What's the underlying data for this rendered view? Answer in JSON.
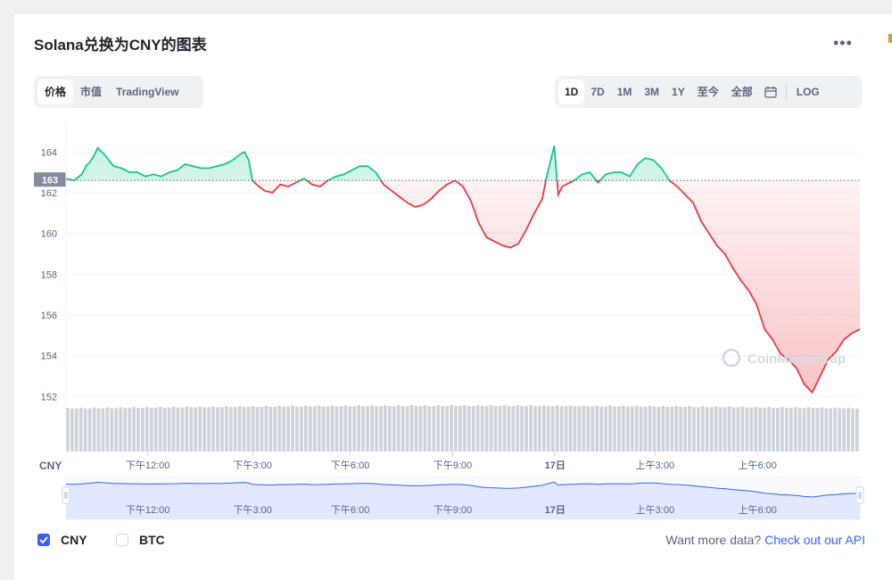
{
  "title": "Solana兑换为CNY的图表",
  "menu_icon": "more-horizontal-icon",
  "tabs_left": [
    {
      "label": "价格",
      "active": true
    },
    {
      "label": "市值",
      "active": false
    },
    {
      "label": "TradingView",
      "active": false
    }
  ],
  "ranges": [
    {
      "label": "1D",
      "active": true
    },
    {
      "label": "7D",
      "active": false
    },
    {
      "label": "1M",
      "active": false
    },
    {
      "label": "3M",
      "active": false
    },
    {
      "label": "1Y",
      "active": false
    },
    {
      "label": "至今",
      "active": false
    },
    {
      "label": "全部",
      "active": false
    }
  ],
  "calendar_icon": "calendar-icon",
  "log_label": "LOG",
  "watermark": "CoinMarketCap",
  "currency_axis_label": "CNY",
  "colors": {
    "up": "#16c784",
    "down": "#ea3943",
    "accent": "#3861fb",
    "navigator": "#dfe6ff"
  },
  "chart_data": {
    "type": "line",
    "ylim": [
      150,
      165.5
    ],
    "yticks": [
      152,
      154,
      156,
      158,
      160,
      162,
      164
    ],
    "reference_value": 162.6,
    "reference_label": "163",
    "xticks": [
      "下午12:00",
      "下午3:00",
      "下午6:00",
      "下午9:00",
      "17日",
      "上午3:00",
      "上午6:00"
    ],
    "xtick_positions": [
      0.103,
      0.235,
      0.358,
      0.487,
      0.616,
      0.742,
      0.871
    ],
    "x": [
      0,
      0.01,
      0.02,
      0.025,
      0.03,
      0.035,
      0.04,
      0.045,
      0.05,
      0.06,
      0.07,
      0.08,
      0.09,
      0.1,
      0.11,
      0.12,
      0.13,
      0.14,
      0.15,
      0.16,
      0.17,
      0.18,
      0.19,
      0.2,
      0.21,
      0.22,
      0.225,
      0.23,
      0.235,
      0.24,
      0.25,
      0.26,
      0.27,
      0.28,
      0.29,
      0.3,
      0.31,
      0.32,
      0.33,
      0.34,
      0.35,
      0.36,
      0.37,
      0.38,
      0.39,
      0.4,
      0.41,
      0.42,
      0.43,
      0.44,
      0.45,
      0.46,
      0.47,
      0.48,
      0.49,
      0.5,
      0.51,
      0.52,
      0.53,
      0.54,
      0.55,
      0.56,
      0.57,
      0.58,
      0.59,
      0.6,
      0.605,
      0.61,
      0.615,
      0.62,
      0.625,
      0.63,
      0.64,
      0.65,
      0.66,
      0.67,
      0.68,
      0.69,
      0.7,
      0.71,
      0.72,
      0.73,
      0.74,
      0.75,
      0.76,
      0.77,
      0.78,
      0.79,
      0.8,
      0.81,
      0.82,
      0.83,
      0.84,
      0.85,
      0.86,
      0.87,
      0.88,
      0.89,
      0.9,
      0.91,
      0.92,
      0.93,
      0.94,
      0.95,
      0.96,
      0.97,
      0.98,
      0.99,
      1.0
    ],
    "values": [
      162.7,
      162.6,
      162.9,
      163.3,
      163.5,
      163.8,
      164.2,
      164.0,
      163.8,
      163.3,
      163.2,
      163.0,
      163.0,
      162.8,
      162.9,
      162.8,
      163.0,
      163.1,
      163.4,
      163.3,
      163.2,
      163.2,
      163.3,
      163.4,
      163.6,
      163.9,
      164.0,
      163.6,
      162.6,
      162.4,
      162.1,
      162.0,
      162.4,
      162.3,
      162.5,
      162.7,
      162.4,
      162.3,
      162.6,
      162.8,
      162.9,
      163.1,
      163.3,
      163.3,
      163.0,
      162.4,
      162.1,
      161.8,
      161.5,
      161.3,
      161.4,
      161.7,
      162.1,
      162.4,
      162.6,
      162.3,
      161.6,
      160.5,
      159.8,
      159.6,
      159.4,
      159.3,
      159.5,
      160.2,
      161.0,
      161.7,
      162.7,
      163.5,
      164.3,
      161.9,
      162.3,
      162.4,
      162.6,
      162.9,
      163.0,
      162.5,
      162.9,
      163.0,
      163.0,
      162.8,
      163.4,
      163.7,
      163.6,
      163.2,
      162.6,
      162.3,
      161.9,
      161.5,
      160.6,
      160.0,
      159.4,
      159.0,
      158.3,
      157.7,
      157.2,
      156.5,
      155.3,
      154.8,
      154.1,
      153.8,
      153.4,
      152.6,
      152.2,
      153.0,
      153.8,
      154.2,
      154.8,
      155.1,
      155.3
    ],
    "volume_bars": 180,
    "navigator_ticks": [
      "下午12:00",
      "下午3:00",
      "下午6:00",
      "下午9:00",
      "17日",
      "上午3:00",
      "上午6:00"
    ]
  },
  "currencies": [
    {
      "label": "CNY",
      "checked": true
    },
    {
      "label": "BTC",
      "checked": false
    }
  ],
  "api_text": "Want more data?",
  "api_link": "Check out our API"
}
